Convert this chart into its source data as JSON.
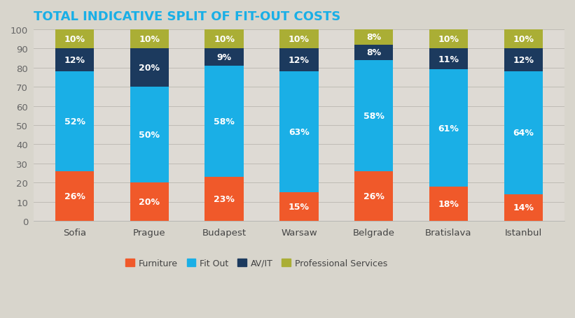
{
  "title": "TOTAL INDICATIVE SPLIT OF FIT-OUT COSTS",
  "categories": [
    "Sofia",
    "Prague",
    "Budapest",
    "Warsaw",
    "Belgrade",
    "Bratislava",
    "Istanbul"
  ],
  "furniture": [
    26,
    20,
    23,
    15,
    26,
    18,
    14
  ],
  "fit_out": [
    52,
    50,
    58,
    63,
    58,
    61,
    64
  ],
  "av_it": [
    12,
    20,
    9,
    12,
    8,
    11,
    12
  ],
  "professional_services": [
    10,
    10,
    10,
    10,
    8,
    10,
    10
  ],
  "color_furniture": "#F0592A",
  "color_fit_out": "#1AAFE6",
  "color_av_it": "#1C3A5E",
  "color_prof_serv": "#AAAE35",
  "background_color": "#D8D5CC",
  "plot_bg_color": "#DEDAD4",
  "title_color": "#1AAFE6",
  "ylim": [
    0,
    100
  ],
  "yticks": [
    0,
    10,
    20,
    30,
    40,
    50,
    60,
    70,
    80,
    90,
    100
  ],
  "legend_labels": [
    "Furniture",
    "Fit Out",
    "AV/IT",
    "Professional Services"
  ],
  "label_fontsize": 9,
  "title_fontsize": 13,
  "tick_fontsize": 9.5,
  "bar_width": 0.52
}
